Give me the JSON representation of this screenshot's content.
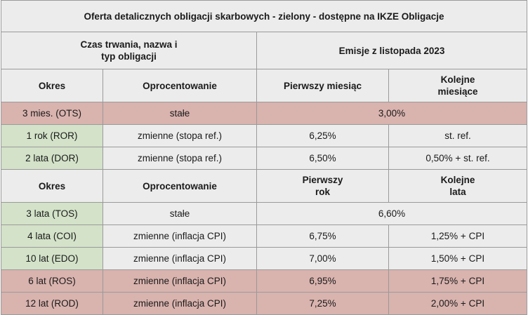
{
  "title": "Oferta detalicznych obligacji skarbowych - zielony - dostępne na IKZE Obligacje",
  "header_top": {
    "left": "Czas trwania, nazwa i typ obligacji",
    "right": "Emisje z listopada 2023"
  },
  "header1": {
    "okres": "Okres",
    "oprocentowanie": "Oprocentowanie",
    "pierwszy": "Pierwszy miesiąc",
    "kolejne": "Kolejne miesiące"
  },
  "header2": {
    "okres": "Okres",
    "oprocentowanie": "Oprocentowanie",
    "pierwszy": "Pierwszy rok",
    "kolejne": "Kolejne lata"
  },
  "rows": [
    {
      "okres": "3 mies. (OTS)",
      "oprocentowanie": "stałe",
      "pierwszy": "3,00%",
      "kolejne": "",
      "color": "red"
    },
    {
      "okres": "1 rok (ROR)",
      "oprocentowanie": "zmienne (stopa ref.)",
      "pierwszy": "6,25%",
      "kolejne": "st. ref.",
      "color": "green"
    },
    {
      "okres": "2 lata (DOR)",
      "oprocentowanie": "zmienne (stopa ref.)",
      "pierwszy": "6,50%",
      "kolejne": "0,50% + st. ref.",
      "color": "green"
    },
    {
      "okres": "3 lata (TOS)",
      "oprocentowanie": "stałe",
      "pierwszy": "6,60%",
      "kolejne": "",
      "color": "green"
    },
    {
      "okres": "4 lata (COI)",
      "oprocentowanie": "zmienne (inflacja CPI)",
      "pierwszy": "6,75%",
      "kolejne": "1,25% + CPI",
      "color": "green"
    },
    {
      "okres": "10 lat (EDO)",
      "oprocentowanie": "zmienne (inflacja CPI)",
      "pierwszy": "7,00%",
      "kolejne": "1,50% + CPI",
      "color": "green"
    },
    {
      "okres": "6 lat (ROS)",
      "oprocentowanie": "zmienne (inflacja CPI)",
      "pierwszy": "6,95%",
      "kolejne": "1,75% + CPI",
      "color": "red"
    },
    {
      "okres": "12 lat (ROD)",
      "oprocentowanie": "zmienne (inflacja CPI)",
      "pierwszy": "7,25%",
      "kolejne": "2,00% + CPI",
      "color": "red"
    }
  ],
  "colors": {
    "header_bg": "#ececec",
    "red_row": "#d9b3ae",
    "green_cell": "#d3e2c8",
    "border": "#9a9a9a"
  }
}
